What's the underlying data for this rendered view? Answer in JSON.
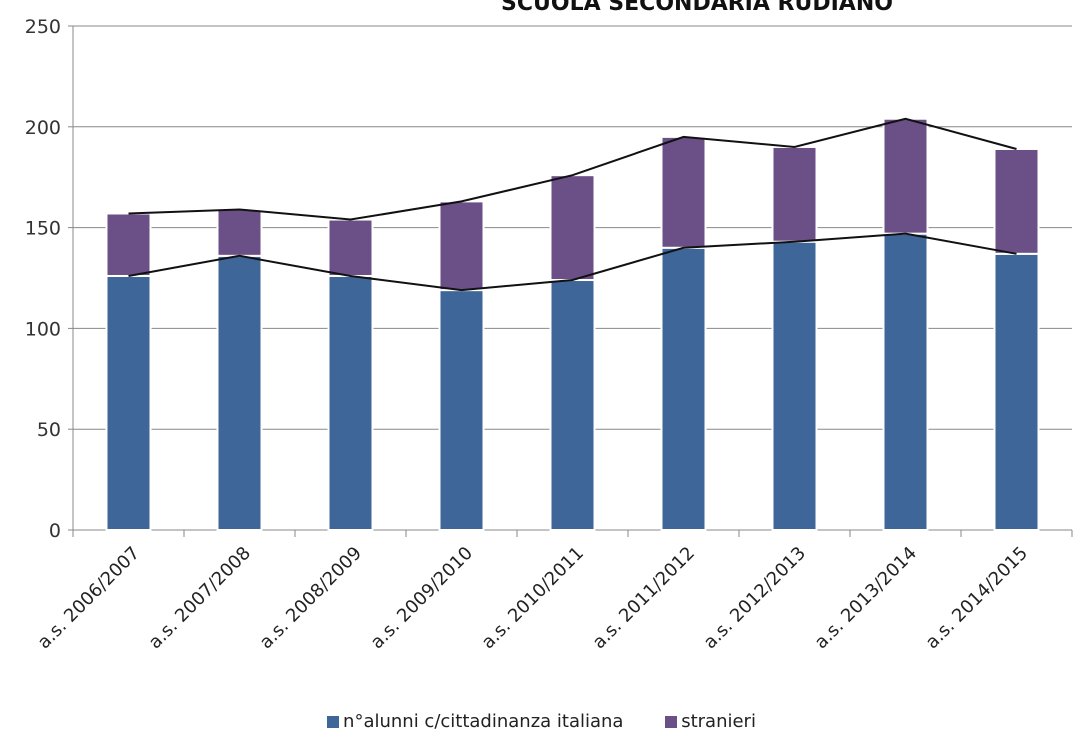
{
  "chart_data": {
    "type": "bar",
    "stacked": true,
    "title": "SCUOLA SECONDARIA  RUDIANO",
    "xlabel": "",
    "ylabel": "",
    "ylim": [
      0,
      250
    ],
    "yticks": [
      0,
      50,
      100,
      150,
      200,
      250
    ],
    "grid": true,
    "legend_position": "bottom",
    "categories": [
      "a.s. 2006/2007",
      "a.s. 2007/2008",
      "a.s. 2008/2009",
      "a.s. 2009/2010",
      "a.s. 2010/2011",
      "a.s. 2011/2012",
      "a.s. 2012/2013",
      "a.s. 2013/2014",
      "a.s. 2014/2015"
    ],
    "series": [
      {
        "name": "n°alunni c/cittadinanza italiana",
        "color": "#3e6699",
        "values": [
          126,
          136,
          126,
          119,
          124,
          140,
          143,
          147,
          137
        ]
      },
      {
        "name": "stranieri",
        "color": "#6b4f87",
        "values": [
          31,
          23,
          28,
          44,
          52,
          55,
          47,
          57,
          52
        ]
      }
    ],
    "overlay_lines": "series totals (cumulative) drawn as black lines"
  }
}
